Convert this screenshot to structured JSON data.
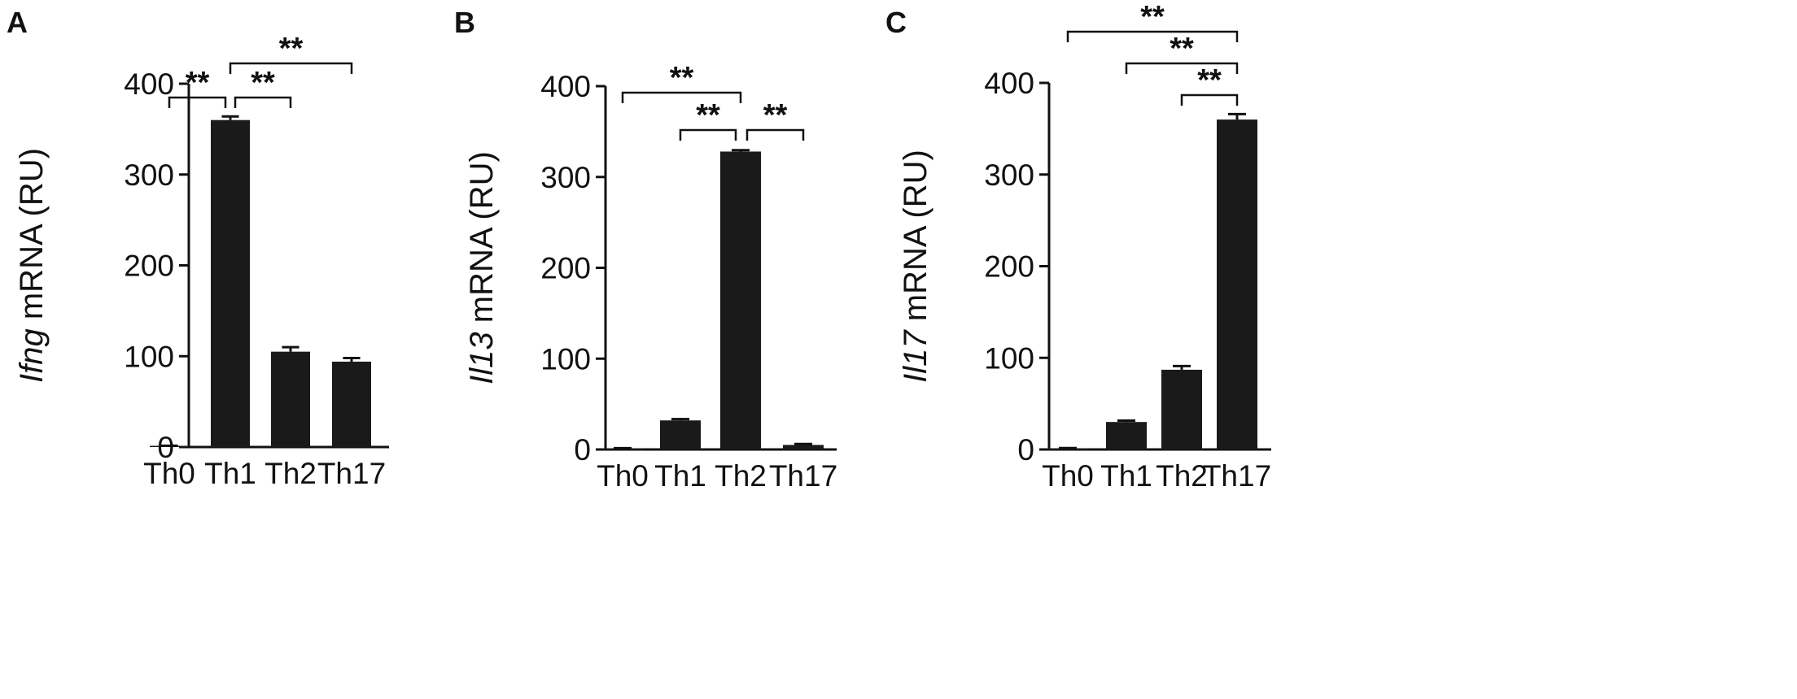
{
  "chart_data": [
    {
      "type": "bar",
      "panel": "A",
      "ylabel_gene": "Ifng",
      "ylabel_rest": " mRNA (RU)",
      "categories": [
        "Th0",
        "Th1",
        "Th2",
        "Th17"
      ],
      "values": [
        1,
        360,
        105,
        94
      ],
      "errors": [
        0.5,
        4,
        5,
        4
      ],
      "ylim": [
        0,
        400
      ],
      "yticks": [
        "0",
        "100",
        "200",
        "300",
        "400"
      ],
      "tick_values": [
        0,
        100,
        200,
        300,
        400
      ],
      "significance": [
        {
          "from": 0,
          "to": 1,
          "label": "**"
        },
        {
          "from": 1,
          "to": 2,
          "label": "**"
        },
        {
          "from": 1,
          "to": 3,
          "label": "**"
        }
      ]
    },
    {
      "type": "bar",
      "panel": "B",
      "ylabel_gene": "Il13",
      "ylabel_rest": " mRNA (RU)",
      "categories": [
        "Th0",
        "Th1",
        "Th2",
        "Th17"
      ],
      "values": [
        1,
        32,
        328,
        5
      ],
      "errors": [
        0.5,
        1.5,
        1.5,
        1
      ],
      "ylim": [
        0,
        400
      ],
      "yticks": [
        "0",
        "100",
        "200",
        "300",
        "400"
      ],
      "tick_values": [
        0,
        100,
        200,
        300,
        400
      ],
      "significance": [
        {
          "from": 0,
          "to": 2,
          "label": "**"
        },
        {
          "from": 1,
          "to": 2,
          "label": "**"
        },
        {
          "from": 2,
          "to": 3,
          "label": "**"
        }
      ]
    },
    {
      "type": "bar",
      "panel": "C",
      "ylabel_gene": "Il17",
      "ylabel_rest": " mRNA (RU)",
      "categories": [
        "Th0",
        "Th1",
        "Th2",
        "Th17"
      ],
      "values": [
        1,
        30,
        87,
        360
      ],
      "errors": [
        0.5,
        1.5,
        4,
        6
      ],
      "ylim": [
        0,
        400
      ],
      "yticks": [
        "0",
        "100",
        "200",
        "300",
        "400"
      ],
      "tick_values": [
        0,
        100,
        200,
        300,
        400
      ],
      "significance": [
        {
          "from": 0,
          "to": 3,
          "label": "**"
        },
        {
          "from": 1,
          "to": 3,
          "label": "**"
        },
        {
          "from": 2,
          "to": 3,
          "label": "**"
        }
      ]
    }
  ]
}
